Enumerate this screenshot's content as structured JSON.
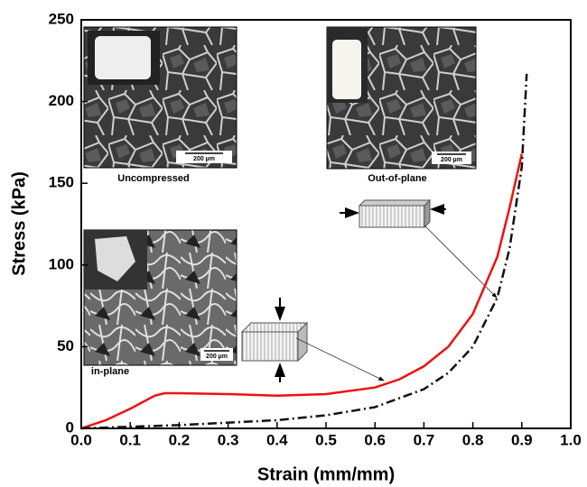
{
  "chart_data": {
    "type": "line",
    "xlabel": "Strain (mm/mm)",
    "ylabel": "Stress (kPa)",
    "xlim": [
      0,
      1
    ],
    "ylim": [
      0,
      250
    ],
    "xticks": [
      {
        "value": 0,
        "label": "0.0"
      },
      0.1,
      0.2,
      0.3,
      0.4,
      0.5,
      0.6,
      0.7,
      0.8,
      0.9,
      {
        "value": 1,
        "label": "1.0"
      }
    ],
    "yticks": [
      0,
      50,
      100,
      150,
      200,
      250
    ],
    "series": [
      {
        "color": "#ee1111",
        "style": "solid",
        "x": [
          0,
          0.05,
          0.1,
          0.15,
          0.17,
          0.2,
          0.3,
          0.4,
          0.5,
          0.6,
          0.65,
          0.7,
          0.75,
          0.8,
          0.85,
          0.875,
          0.9
        ],
        "values": [
          0,
          5,
          12,
          20,
          21.5,
          21.5,
          21,
          20,
          21,
          25,
          30,
          38,
          50,
          70,
          105,
          135,
          168
        ]
      },
      {
        "color": "#111111",
        "style": "dashdot",
        "x": [
          0,
          0.1,
          0.2,
          0.3,
          0.4,
          0.5,
          0.6,
          0.7,
          0.75,
          0.8,
          0.85,
          0.875,
          0.9,
          0.91
        ],
        "values": [
          0,
          1,
          2,
          3.5,
          5,
          8,
          13,
          24,
          34,
          50,
          80,
          110,
          160,
          217
        ]
      }
    ],
    "insets": [
      {
        "caption": "Uncompressed",
        "scale_bar": "200 µm"
      },
      {
        "caption": "Out-of-plane",
        "scale_bar": "200 µm"
      },
      {
        "caption": "in-plane",
        "scale_bar": "200 µm"
      }
    ]
  }
}
